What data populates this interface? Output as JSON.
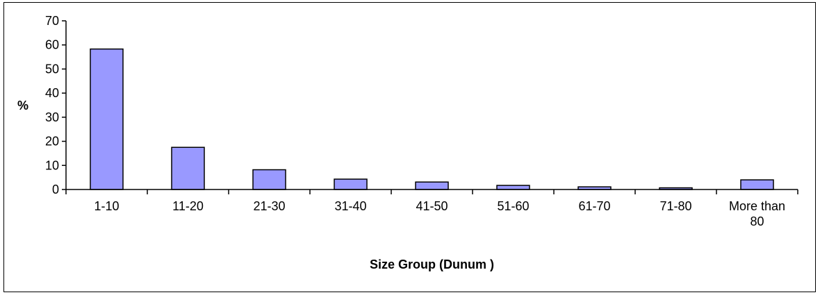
{
  "chart_data": {
    "type": "bar",
    "title": "",
    "xlabel": "Size Group (Dunum )",
    "ylabel": "%",
    "categories": [
      "1-10",
      "11-20",
      "21-30",
      "31-40",
      "41-50",
      "51-60",
      "61-70",
      "71-80",
      "More than 80"
    ],
    "category_label_lines": [
      [
        "1-10"
      ],
      [
        "11-20"
      ],
      [
        "21-30"
      ],
      [
        "31-40"
      ],
      [
        "41-50"
      ],
      [
        "51-60"
      ],
      [
        "61-70"
      ],
      [
        "71-80"
      ],
      [
        "More than",
        "80"
      ]
    ],
    "values": [
      58.3,
      17.5,
      8.2,
      4.3,
      3.1,
      1.7,
      1.1,
      0.7,
      4.0
    ],
    "ylim": [
      0,
      70
    ],
    "yticks": [
      0,
      10,
      20,
      30,
      40,
      50,
      60,
      70
    ],
    "grid": false,
    "legend": "none",
    "bar_color": "#9999ff",
    "bar_edge_color": "#000000"
  }
}
